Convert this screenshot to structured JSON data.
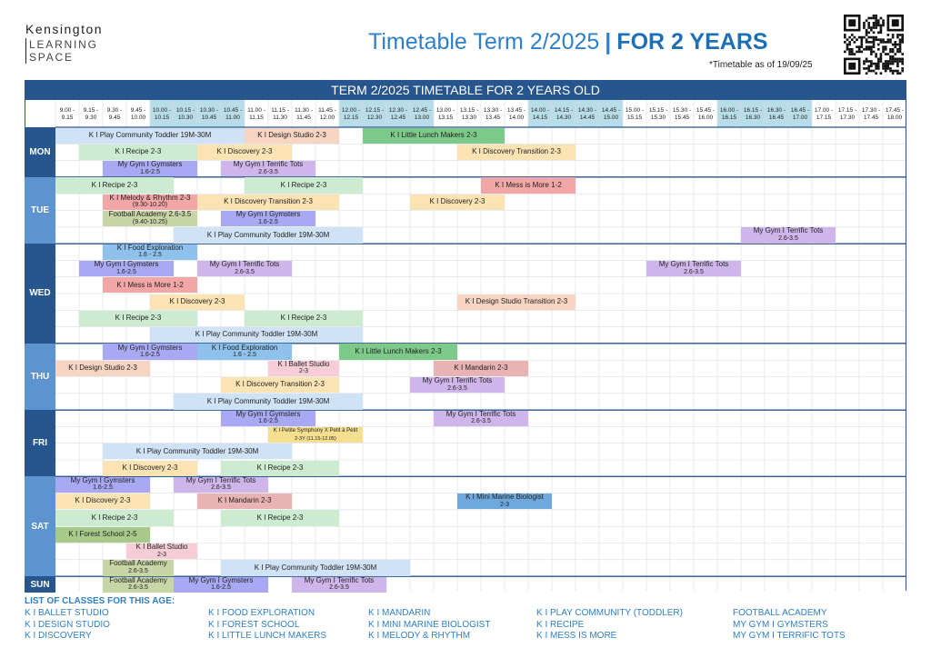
{
  "logo": {
    "line1": "Kensington",
    "line2": "LEARNING",
    "line3": "SPACE"
  },
  "header": {
    "title_main": "Timetable Term 2/2025",
    "separator": "|",
    "title_emph": "FOR 2 YEARS",
    "as_of": "*Timetable as of 19/09/25"
  },
  "table": {
    "title": "TERM 2/2025 TIMETABLE FOR 2 YEARS OLD",
    "slots": [
      [
        "9.00 -",
        "9.15"
      ],
      [
        "9.15 -",
        "9.30"
      ],
      [
        "9.30 -",
        "9.45"
      ],
      [
        "9.45 -",
        "10.00"
      ],
      [
        "10.00 -",
        "10.15"
      ],
      [
        "10.15 -",
        "10.30"
      ],
      [
        "10.30 -",
        "10.45"
      ],
      [
        "10.45 -",
        "11.00"
      ],
      [
        "11.00 -",
        "11.15"
      ],
      [
        "11.15 -",
        "11.30"
      ],
      [
        "11.30 -",
        "11.45"
      ],
      [
        "11.45 -",
        "12.00"
      ],
      [
        "12.00 -",
        "12.15"
      ],
      [
        "12.15 -",
        "12.30"
      ],
      [
        "12.30 -",
        "12.45"
      ],
      [
        "12.45 -",
        "13.00"
      ],
      [
        "13.00 -",
        "13.15"
      ],
      [
        "13.15 -",
        "13.30"
      ],
      [
        "13.30 -",
        "13.45"
      ],
      [
        "13.45 -",
        "14.00"
      ],
      [
        "14.00 -",
        "14.15"
      ],
      [
        "14.15 -",
        "14.30"
      ],
      [
        "14.30 -",
        "14.45"
      ],
      [
        "14.45 -",
        "15.00"
      ],
      [
        "15.00 -",
        "15.15"
      ],
      [
        "15.15 -",
        "15.30"
      ],
      [
        "15.30 -",
        "15.45"
      ],
      [
        "15.45 -",
        "16.00"
      ],
      [
        "16.00 -",
        "16.15"
      ],
      [
        "16.15 -",
        "16.30"
      ],
      [
        "16.30 -",
        "16.45"
      ],
      [
        "16.45 -",
        "17.00"
      ],
      [
        "17.00 -",
        "17.15"
      ],
      [
        "17.15 -",
        "17.30"
      ],
      [
        "17.30 -",
        "17.45"
      ],
      [
        "17.45 -",
        "18.00"
      ]
    ],
    "highlight_slots": [
      4,
      5,
      6,
      7,
      12,
      13,
      14,
      15,
      20,
      21,
      22,
      23,
      28,
      29,
      30,
      31
    ],
    "days": [
      {
        "name": "MON",
        "rows": 3,
        "classes": [
          {
            "r": 0,
            "s": 0,
            "e": 7,
            "t": "K I Play Community Toddler 19M-30M",
            "c": "blue"
          },
          {
            "r": 0,
            "s": 8,
            "e": 11,
            "t": "K I Design Studio 2-3",
            "c": "peach"
          },
          {
            "r": 0,
            "s": 13,
            "e": 18,
            "t": "K I Little Lunch Makers 2-3",
            "c": "green"
          },
          {
            "r": 1,
            "s": 1,
            "e": 5,
            "t": "K I Recipe 2-3",
            "c": "lgreen"
          },
          {
            "r": 1,
            "s": 6,
            "e": 9,
            "t": "K I Discovery 2-3",
            "c": "yellow"
          },
          {
            "r": 1,
            "s": 17,
            "e": 21,
            "t": "K I Discovery Transition 2-3",
            "c": "yellow"
          },
          {
            "r": 2,
            "s": 2,
            "e": 5,
            "t": "My Gym I Gymsters",
            "t2": "1.6-2.5",
            "c": "purple"
          },
          {
            "r": 2,
            "s": 7,
            "e": 10,
            "t": "My Gym I Terrific Tots",
            "t2": "2.6-3.5",
            "c": "lilac"
          }
        ]
      },
      {
        "name": "TUE",
        "rows": 4,
        "classes": [
          {
            "r": 0,
            "s": 0,
            "e": 4,
            "t": "K I Recipe 2-3",
            "c": "lgreen"
          },
          {
            "r": 0,
            "s": 8,
            "e": 12,
            "t": "K I Recipe 2-3",
            "c": "lgreen"
          },
          {
            "r": 0,
            "s": 18,
            "e": 21,
            "t": "K I Mess is More 1-2",
            "c": "red"
          },
          {
            "r": 1,
            "s": 2,
            "e": 5,
            "t": "K I Melody & Rhythm 2-3",
            "t2": "(9.30-10.20)",
            "c": "red"
          },
          {
            "r": 1,
            "s": 6,
            "e": 11,
            "t": "K I Discovery Transition 2-3",
            "c": "yellow"
          },
          {
            "r": 1,
            "s": 15,
            "e": 18,
            "t": "K I Discovery 2-3",
            "c": "yellow"
          },
          {
            "r": 2,
            "s": 2,
            "e": 5,
            "t": "Football Academy 2.6-3.5",
            "t2": "(9.40-10.25)",
            "c": "olive"
          },
          {
            "r": 2,
            "s": 7,
            "e": 10,
            "t": "My Gym I Gymsters",
            "t2": "1.6-2.5",
            "c": "purple"
          },
          {
            "r": 3,
            "s": 5,
            "e": 12,
            "t": "K I Play Community Toddler 19M-30M",
            "c": "blue"
          },
          {
            "r": 3,
            "s": 29,
            "e": 32,
            "t": "My Gym I Terrific Tots",
            "t2": "2.6-3.5",
            "c": "lilac"
          }
        ]
      },
      {
        "name": "WED",
        "rows": 6,
        "classes": [
          {
            "r": 0,
            "s": 2,
            "e": 5,
            "t": "K I Food Exploration",
            "t2": "1.6 - 2.5",
            "c": "sky"
          },
          {
            "r": 1,
            "s": 1,
            "e": 4,
            "t": "My Gym I Gymsters",
            "t2": "1.6-2.5",
            "c": "purple"
          },
          {
            "r": 1,
            "s": 6,
            "e": 9,
            "t": "My Gym I Terrific Tots",
            "t2": "2.6-3.5",
            "c": "lilac"
          },
          {
            "r": 1,
            "s": 25,
            "e": 28,
            "t": "My Gym I Terrific Tots",
            "t2": "2.6-3.5",
            "c": "lilac"
          },
          {
            "r": 2,
            "s": 2,
            "e": 5,
            "t": "K I Mess is More 1-2",
            "c": "red"
          },
          {
            "r": 3,
            "s": 4,
            "e": 7,
            "t": "K I Discovery 2-3",
            "c": "yellow"
          },
          {
            "r": 3,
            "s": 17,
            "e": 21,
            "t": "K I Design Studio Transition 2-3",
            "c": "peach"
          },
          {
            "r": 4,
            "s": 1,
            "e": 5,
            "t": "K I Recipe 2-3",
            "c": "lgreen"
          },
          {
            "r": 4,
            "s": 8,
            "e": 12,
            "t": "K I Recipe 2-3",
            "c": "lgreen"
          },
          {
            "r": 5,
            "s": 4,
            "e": 12,
            "t": "K I Play Community Toddler 19M-30M",
            "c": "blue"
          }
        ]
      },
      {
        "name": "THU",
        "rows": 4,
        "classes": [
          {
            "r": 0,
            "s": 2,
            "e": 5,
            "t": "My Gym I Gymsters",
            "t2": "1.6-2.5",
            "c": "purple"
          },
          {
            "r": 0,
            "s": 6,
            "e": 9,
            "t": "K I Food Exploration",
            "t2": "1.6 - 2.5",
            "c": "sky"
          },
          {
            "r": 0,
            "s": 12,
            "e": 16,
            "t": "K I Little Lunch Makers 2-3",
            "c": "green"
          },
          {
            "r": 1,
            "s": 0,
            "e": 3,
            "t": "K I Design Studio 2-3",
            "c": "peach"
          },
          {
            "r": 1,
            "s": 9,
            "e": 11,
            "t": "K I Ballet Studio",
            "t2": "2-3",
            "c": "pink"
          },
          {
            "r": 1,
            "s": 16,
            "e": 19,
            "t": "K I Mandarin 2-3",
            "c": "rose"
          },
          {
            "r": 2,
            "s": 7,
            "e": 11,
            "t": "K I Discovery Transition 2-3",
            "c": "yellow"
          },
          {
            "r": 2,
            "s": 15,
            "e": 18,
            "t": "My Gym I Terrific Tots",
            "t2": "2.6-3.5",
            "c": "lilac"
          },
          {
            "r": 3,
            "s": 5,
            "e": 12,
            "t": "K I Play Community Toddler 19M-30M",
            "c": "blue"
          }
        ]
      },
      {
        "name": "FRI",
        "rows": 4,
        "classes": [
          {
            "r": 0,
            "s": 7,
            "e": 10,
            "t": "My Gym I Gymsters",
            "t2": "1.6-2.5",
            "c": "purple"
          },
          {
            "r": 0,
            "s": 16,
            "e": 19,
            "t": "My Gym I Terrific Tots",
            "t2": "2.6-3.5",
            "c": "lilac"
          },
          {
            "r": 1,
            "s": 9,
            "e": 12,
            "t": "K I Petite Symphony X Petit à Petit",
            "t2": "2-3Y (11.15-12.05)",
            "c": "gold",
            "small": true
          },
          {
            "r": 2,
            "s": 2,
            "e": 9,
            "t": "K I Play Community Toddler 19M-30M",
            "c": "blue"
          },
          {
            "r": 3,
            "s": 2,
            "e": 5,
            "t": "K I Discovery 2-3",
            "c": "yellow"
          },
          {
            "r": 3,
            "s": 7,
            "e": 11,
            "t": "K I Recipe 2-3",
            "c": "lgreen"
          }
        ]
      },
      {
        "name": "SAT",
        "rows": 6,
        "classes": [
          {
            "r": 0,
            "s": 0,
            "e": 3,
            "t": "My Gym I Gymsters",
            "t2": "1.6-2.5",
            "c": "purple"
          },
          {
            "r": 0,
            "s": 5,
            "e": 8,
            "t": "My Gym I Terrific Tots",
            "t2": "2.6-3.5",
            "c": "lilac"
          },
          {
            "r": 1,
            "s": 0,
            "e": 3,
            "t": "K I Discovery 2-3",
            "c": "yellow"
          },
          {
            "r": 1,
            "s": 6,
            "e": 9,
            "t": "K I Mandarin 2-3",
            "c": "rose"
          },
          {
            "r": 1,
            "s": 17,
            "e": 20,
            "t": "K I Mini Marine Biologist",
            "t2": "2-3",
            "c": "teal"
          },
          {
            "r": 2,
            "s": 0,
            "e": 4,
            "t": "K I Recipe 2-3",
            "c": "lgreen"
          },
          {
            "r": 2,
            "s": 7,
            "e": 11,
            "t": "K I Recipe 2-3",
            "c": "lgreen"
          },
          {
            "r": 3,
            "s": 0,
            "e": 3,
            "t": "K I Forest School 2-5",
            "c": "moss"
          },
          {
            "r": 4,
            "s": 3,
            "e": 5,
            "t": "K I Ballet Studio",
            "t2": "2-3",
            "c": "pink"
          },
          {
            "r": 5,
            "s": 2,
            "e": 4,
            "t": "Football Academy",
            "t2": "2.6-3.5",
            "c": "olive"
          },
          {
            "r": 5,
            "s": 7,
            "e": 14,
            "t": "K I Play Community Toddler 19M-30M",
            "c": "blue"
          }
        ]
      },
      {
        "name": "SUN",
        "rows": 1,
        "classes": [
          {
            "r": 0,
            "s": 2,
            "e": 4,
            "t": "Football Academy",
            "t2": "2.6-3.5",
            "c": "olive"
          },
          {
            "r": 0,
            "s": 5,
            "e": 8,
            "t": "My Gym I Gymsters",
            "t2": "1.6-2.5",
            "c": "purple"
          },
          {
            "r": 0,
            "s": 10,
            "e": 13,
            "t": "My Gym I Terrific Tots",
            "t2": "2.6-3.5",
            "c": "lilac"
          }
        ]
      }
    ]
  },
  "colors": {
    "blue": "#cfe2f6",
    "peach": "#f8d5c2",
    "green": "#7cc98a",
    "lgreen": "#cdebd0",
    "yellow": "#fbe3b4",
    "purple": "#a9a8f2",
    "lilac": "#cfb6ea",
    "red": "#f3a6a6",
    "olive": "#c8d5a7",
    "sky": "#8ec1ec",
    "pink": "#f6cdd6",
    "rose": "#e9b3b3",
    "gold": "#f5df8f",
    "teal": "#6ea8dc",
    "moss": "#a8c98a",
    "day_dark": "#27568e",
    "day_light": "#5d93cf",
    "slot_highlight": "#b8dce8"
  },
  "legend": {
    "heading": "LIST OF CLASSES FOR THIS AGE:",
    "columns": [
      [
        "K I BALLET STUDIO",
        "K I DESIGN STUDIO",
        "K I DISCOVERY"
      ],
      [
        "K I FOOD EXPLORATION",
        "K I FOREST SCHOOL",
        "K I LITTLE LUNCH MAKERS"
      ],
      [
        "K I MANDARIN",
        "K I MINI MARINE BIOLOGIST",
        "K I MELODY & RHYTHM"
      ],
      [
        "K I PLAY COMMUNITY (TODDLER)",
        "K I RECIPE",
        "K I MESS IS MORE"
      ],
      [
        "FOOTBALL ACADEMY",
        "MY GYM I GYMSTERS",
        "MY GYM I TERRIFIC TOTS"
      ]
    ]
  }
}
